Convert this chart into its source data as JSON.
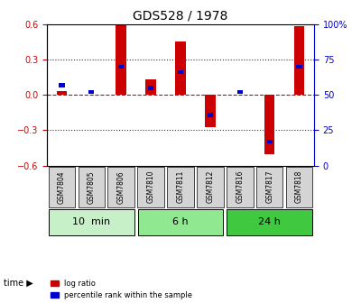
{
  "title": "GDS528 / 1978",
  "samples": [
    "GSM7804",
    "GSM7805",
    "GSM7806",
    "GSM7810",
    "GSM7811",
    "GSM7812",
    "GSM7816",
    "GSM7817",
    "GSM7818"
  ],
  "log_ratio": [
    0.03,
    0.0,
    0.6,
    0.13,
    0.45,
    -0.27,
    0.0,
    -0.5,
    0.58
  ],
  "percentile_rank": [
    57,
    52,
    70,
    55,
    66,
    36,
    52,
    17,
    70
  ],
  "groups": [
    {
      "label": "10  min",
      "samples": [
        0,
        1,
        2
      ],
      "color": "#c8f0c8"
    },
    {
      "label": "6 h",
      "samples": [
        3,
        4,
        5
      ],
      "color": "#90e890"
    },
    {
      "label": "24 h",
      "samples": [
        6,
        7,
        8
      ],
      "color": "#40c840"
    }
  ],
  "ylim": [
    -0.6,
    0.6
  ],
  "yticks_left": [
    -0.6,
    -0.3,
    0.0,
    0.3,
    0.6
  ],
  "yticks_right": [
    0,
    25,
    50,
    75,
    100
  ],
  "bar_width": 0.35,
  "red_color": "#cc0000",
  "blue_color": "#0000cc",
  "dashed_line_color": "#cc0000",
  "dotted_line_color": "#333333",
  "background_color": "#ffffff",
  "label_tick_color_left": "#cc0000",
  "label_tick_color_right": "#0000cc"
}
